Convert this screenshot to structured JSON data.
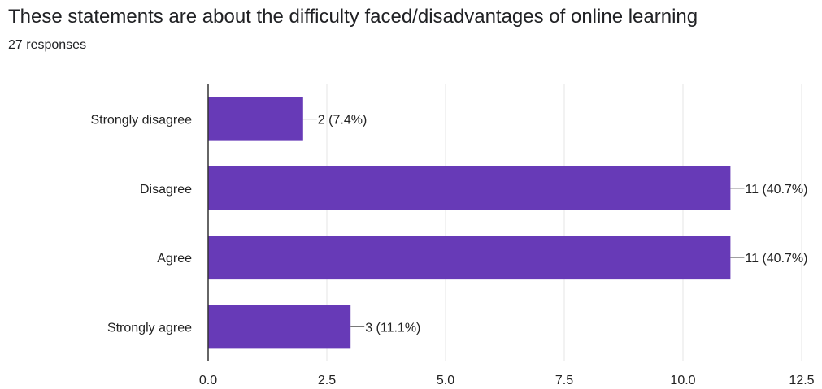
{
  "header": {
    "title": "These statements are about the difficulty faced/disadvantages of online learning",
    "responses": "27 responses"
  },
  "colors": {
    "bar": "#673ab7",
    "grid": "#e6e6e6",
    "axis": "#333333",
    "leader": "#666666"
  },
  "chart_data": {
    "type": "bar",
    "orientation": "horizontal",
    "title": "These statements are about the difficulty faced/disadvantages of online learning",
    "subtitle": "27 responses",
    "categories": [
      "Strongly disagree",
      "Disagree",
      "Agree",
      "Strongly agree"
    ],
    "values": [
      2,
      11,
      11,
      3
    ],
    "data_labels": [
      "2 (7.4%)",
      "11 (40.7%)",
      "11 (40.7%)",
      "3 (11.1%)"
    ],
    "xlim": [
      0,
      12.5
    ],
    "x_ticks": [
      0,
      2.5,
      5,
      7.5,
      10,
      12.5
    ],
    "x_tick_labels": [
      "0.0",
      "2.5",
      "5.0",
      "7.5",
      "10.0",
      "12.5"
    ],
    "grid": true,
    "legend": "none"
  }
}
